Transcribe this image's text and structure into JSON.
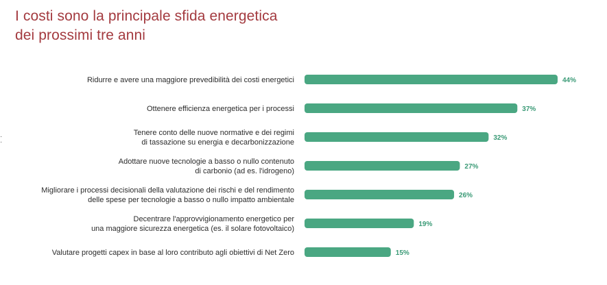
{
  "title_line1": "I costi sono la principale sfida energetica",
  "title_line2": "dei prossimi tre anni",
  "colors": {
    "bar": "#4aa782",
    "value_text": "#3a9a76",
    "title": "#a33a3f"
  },
  "chart_data": {
    "type": "bar",
    "orientation": "horizontal",
    "title": "I costi sono la principale sfida energetica dei prossimi tre anni",
    "unit": "%",
    "categories": [
      [
        "Ridurre e avere una maggiore prevedibilità dei costi energetici"
      ],
      [
        "Ottenere efficienza energetica per i processi"
      ],
      [
        "Tenere conto delle nuove normative e dei regimi",
        "di tassazione su energia e decarbonizzazione"
      ],
      [
        "Adottare nuove tecnologie a basso o nullo contenuto",
        "di carbonio (ad es. l'idrogeno)"
      ],
      [
        "Migliorare i processi decisionali della valutazione dei rischi e del rendimento",
        "delle spese per tecnologie a basso o nullo impatto ambientale"
      ],
      [
        "Decentrare l'approvvigionamento energetico per",
        "una maggiore sicurezza energetica (es. il solare fotovoltaico)"
      ],
      [
        "Valutare progetti capex in base al loro contributo agli obiettivi di Net Zero"
      ]
    ],
    "values": [
      44,
      37,
      32,
      27,
      26,
      19,
      15
    ],
    "value_labels": [
      "44%",
      "37%",
      "32%",
      "27%",
      "26%",
      "19%",
      "15%"
    ],
    "xlim": [
      0,
      44
    ],
    "grid": false,
    "legend": "none"
  }
}
